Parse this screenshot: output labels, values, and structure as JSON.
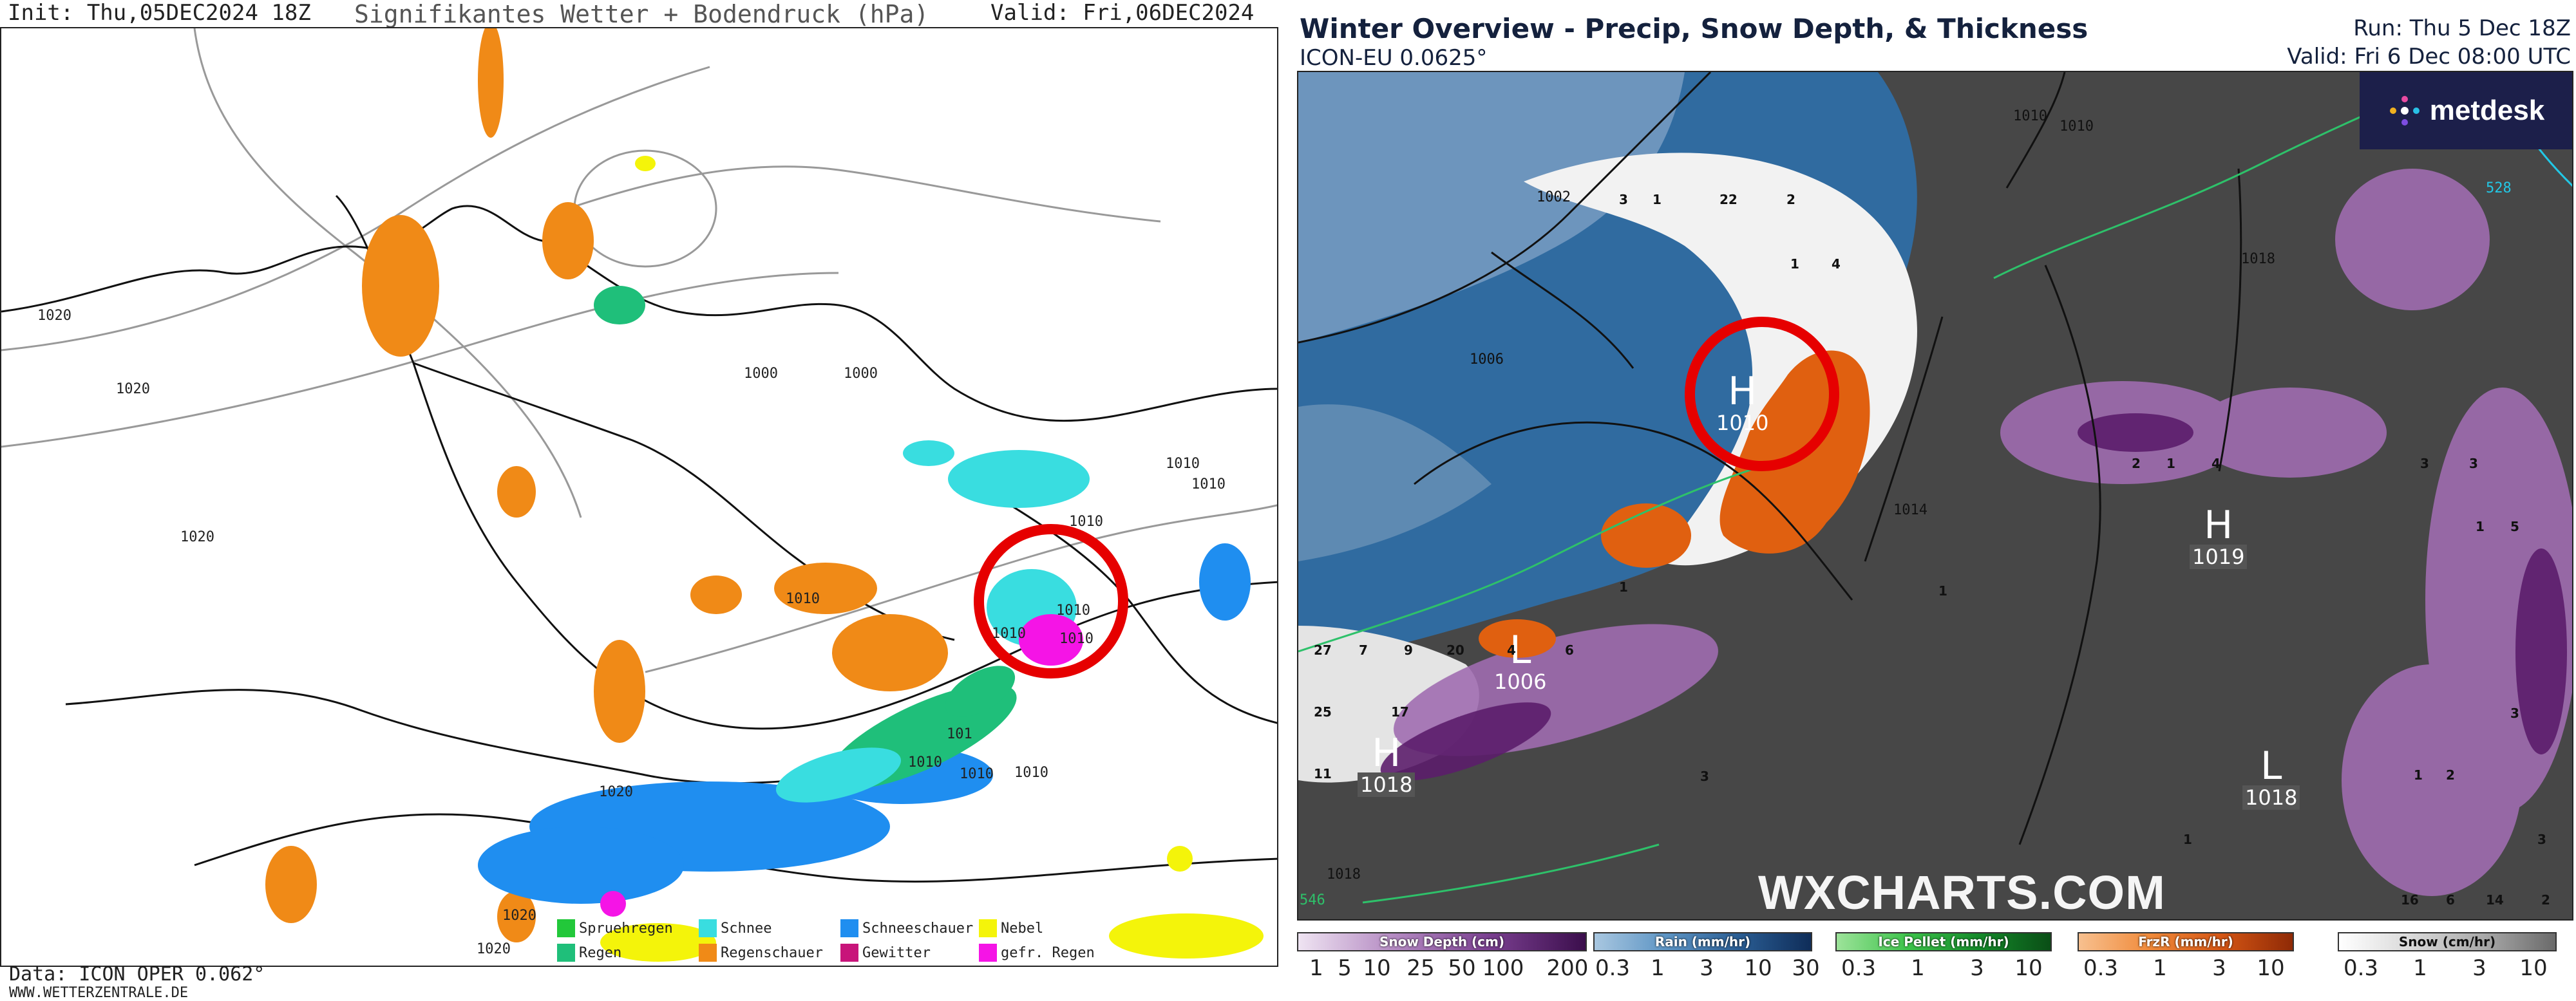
{
  "left_map": {
    "header": {
      "init": "Init: Thu,05DEC2024 18Z",
      "title": "Signifikantes Wetter + Bodendruck (hPa)",
      "valid": "Valid: Fri,06DEC2024 09Z"
    },
    "footer": {
      "data": "Data: ICON OPER 0.062°",
      "site": "WWW.WETTERZENTRALE.DE"
    },
    "isobar_labels": [
      "1020",
      "1020",
      "1000",
      "1000",
      "1010",
      "1010",
      "1010",
      "1010",
      "1010",
      "1010",
      "1010",
      "1010",
      "1020",
      "1020",
      "1020",
      "1020",
      "101",
      "1010",
      "1010"
    ],
    "legend": [
      {
        "label": "Spruehregen",
        "color": "#22c83a"
      },
      {
        "label": "Regen",
        "color": "#1fbf7a"
      },
      {
        "label": "Schnee",
        "color": "#39dde0"
      },
      {
        "label": "Regenschauer",
        "color": "#f08a17"
      },
      {
        "label": "Schneeschauer",
        "color": "#1f8ef0"
      },
      {
        "label": "Gewitter",
        "color": "#c8147a"
      },
      {
        "label": "Nebel",
        "color": "#f4f40a"
      },
      {
        "label": "gefr. Regen",
        "color": "#f514e6"
      }
    ]
  },
  "right_map": {
    "title": "Winter Overview - Precip, Snow Depth, & Thickness",
    "model": "ICON-EU 0.0625°",
    "run": "Run: Thu 5 Dec 18Z",
    "valid": "Valid: Fri 6 Dec 08:00 UTC",
    "brand": "metdesk",
    "watermark": "WXCHARTS.COM",
    "pressure_centers": [
      {
        "letter": "H",
        "value": "1010"
      },
      {
        "letter": "H",
        "value": "1019"
      },
      {
        "letter": "L",
        "value": "1006"
      },
      {
        "letter": "H",
        "value": "1018"
      },
      {
        "letter": "L",
        "value": "1018"
      },
      {
        "letter": "H",
        "value": "1018"
      }
    ],
    "contour_labels": [
      "1010",
      "1006",
      "1002",
      "1014",
      "1010",
      "1018",
      "528",
      "546",
      "1018"
    ],
    "snow_depth_labels": [
      "3",
      "1",
      "22",
      "2",
      "1",
      "4",
      "1",
      "27",
      "7",
      "9",
      "20",
      "4",
      "6",
      "25",
      "17",
      "11",
      "3",
      "1",
      "2",
      "1",
      "4",
      "3",
      "3",
      "5",
      "1",
      "1",
      "2",
      "3",
      "16",
      "6",
      "14",
      "2",
      "3",
      "1"
    ],
    "legend": [
      {
        "title": "Snow Depth (cm)",
        "ticks": [
          "1",
          "5",
          "10",
          "25",
          "50",
          "100",
          "200"
        ]
      },
      {
        "title": "Rain (mm/hr)",
        "ticks": [
          "0.3",
          "1",
          "3",
          "10",
          "30"
        ]
      },
      {
        "title": "Ice Pellet (mm/hr)",
        "ticks": [
          "0.3",
          "1",
          "3",
          "10"
        ]
      },
      {
        "title": "FrzR (mm/hr)",
        "ticks": [
          "0.3",
          "1",
          "3",
          "10"
        ]
      },
      {
        "title": "Snow (cm/hr)",
        "ticks": [
          "0.3",
          "1",
          "3",
          "10"
        ]
      }
    ]
  },
  "colors": {
    "left_bg": "#ffffff",
    "right_land": "#4a4a4a",
    "right_water": "#2d2d2d",
    "rain_blue": "#2f78b8",
    "snow_white": "#f2f2f2",
    "freezing_rain": "#e06010",
    "snow_purple": "#a06cb0",
    "circle_red": "#e60000"
  }
}
